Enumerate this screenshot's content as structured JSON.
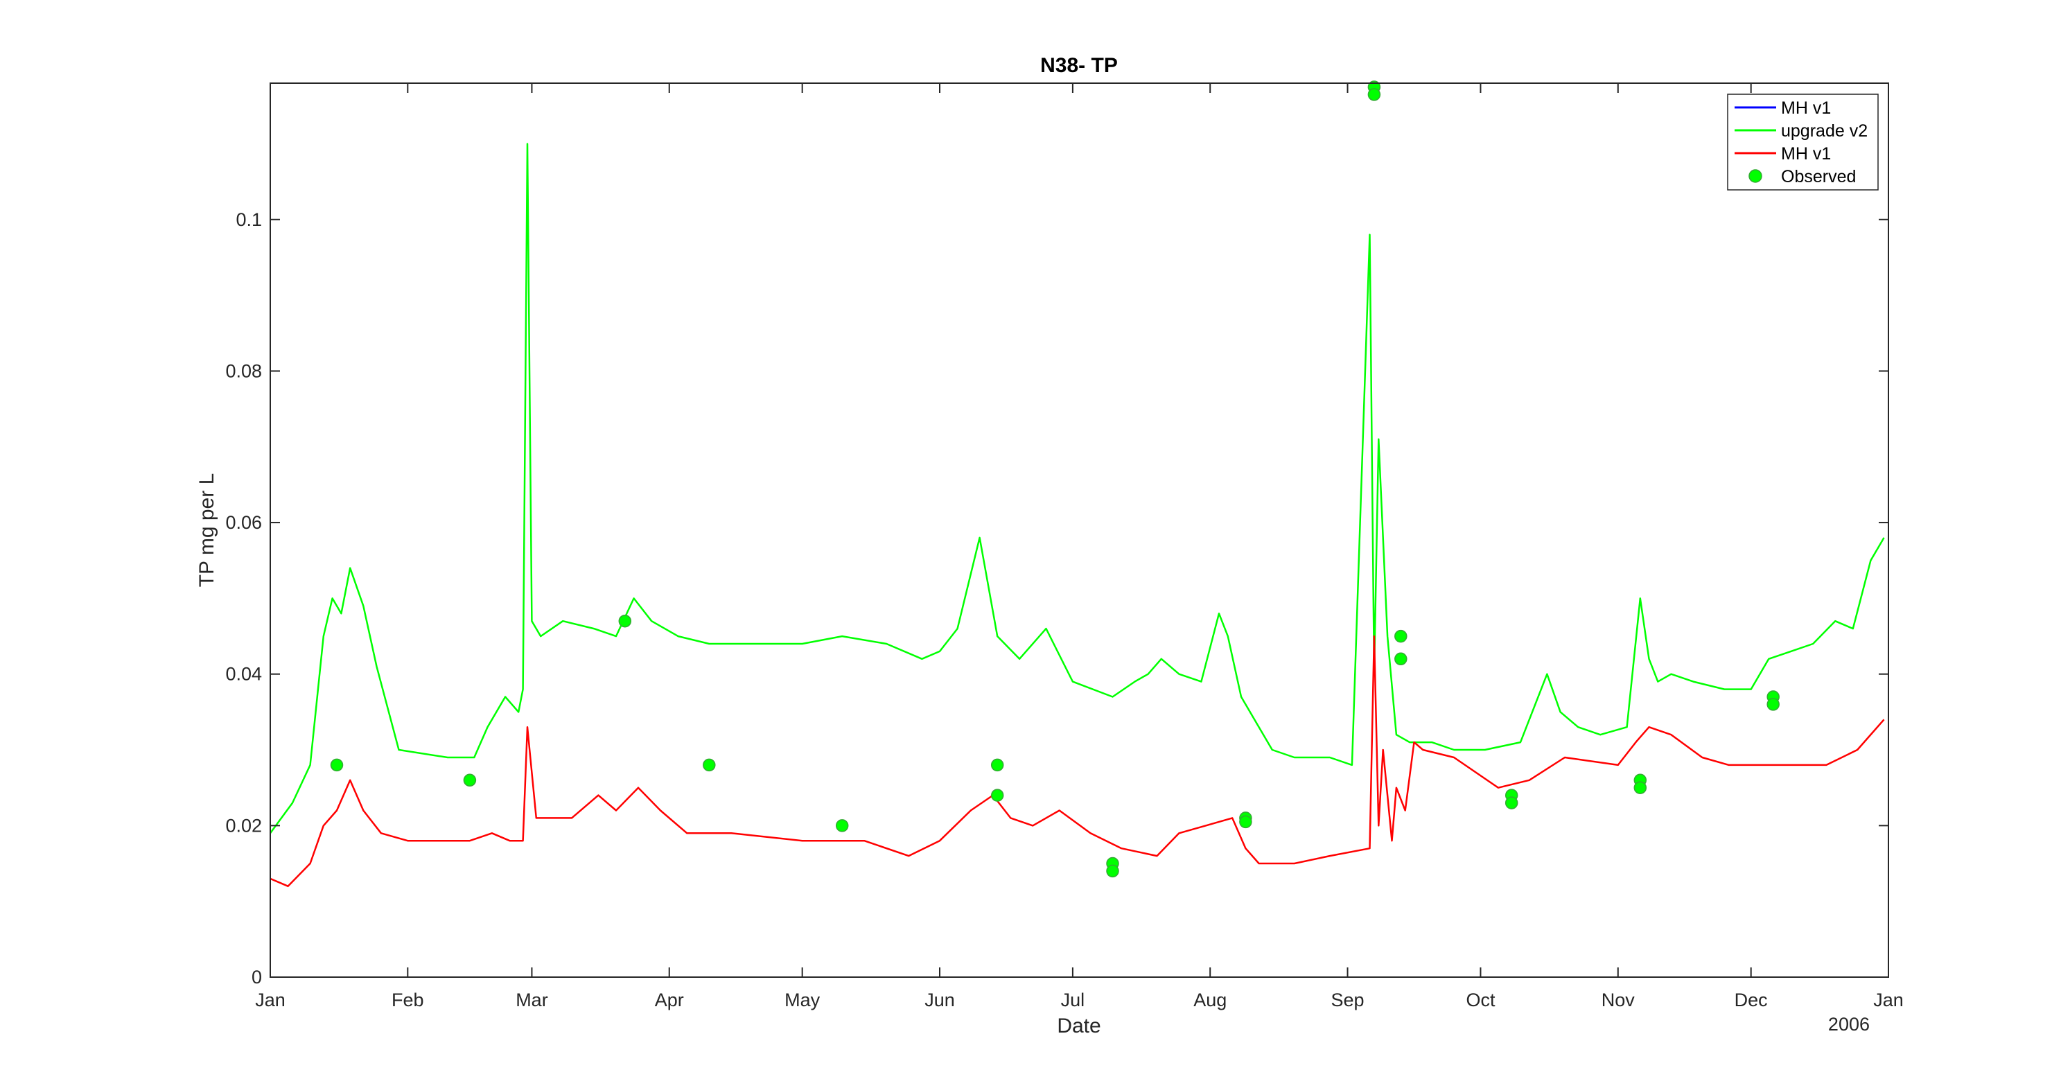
{
  "colors": {
    "series_mh_v1_blue": "#0000ff",
    "series_upgrade_v2": "#00ff00",
    "series_mh_v1_red": "#ff0000",
    "observed_fill": "#00ff00",
    "observed_edge": "#33aa33",
    "axis": "#262626"
  },
  "chart_data": {
    "type": "line",
    "title": "N38- TP",
    "xlabel": "Date",
    "ylabel": "TP mg per L",
    "year_label": "2006",
    "x_domain": [
      "2006-01-01",
      "2007-01-01"
    ],
    "ylim": [
      0,
      0.118
    ],
    "x_ticks": [
      {
        "date": "2006-01-01",
        "label": "Jan"
      },
      {
        "date": "2006-02-01",
        "label": "Feb"
      },
      {
        "date": "2006-03-01",
        "label": "Mar"
      },
      {
        "date": "2006-04-01",
        "label": "Apr"
      },
      {
        "date": "2006-05-01",
        "label": "May"
      },
      {
        "date": "2006-06-01",
        "label": "Jun"
      },
      {
        "date": "2006-07-01",
        "label": "Jul"
      },
      {
        "date": "2006-08-01",
        "label": "Aug"
      },
      {
        "date": "2006-09-01",
        "label": "Sep"
      },
      {
        "date": "2006-10-01",
        "label": "Oct"
      },
      {
        "date": "2006-11-01",
        "label": "Nov"
      },
      {
        "date": "2006-12-01",
        "label": "Dec"
      },
      {
        "date": "2007-01-01",
        "label": "Jan"
      }
    ],
    "y_ticks": [
      {
        "value": 0,
        "label": "0"
      },
      {
        "value": 0.02,
        "label": "0.02"
      },
      {
        "value": 0.04,
        "label": "0.04"
      },
      {
        "value": 0.06,
        "label": "0.06"
      },
      {
        "value": 0.08,
        "label": "0.08"
      },
      {
        "value": 0.1,
        "label": "0.1"
      }
    ],
    "grid": false,
    "legend_position": "top-right",
    "legend": [
      {
        "label": "MH v1",
        "kind": "line",
        "color": "#0000ff"
      },
      {
        "label": "upgrade v2",
        "kind": "line",
        "color": "#00ff00"
      },
      {
        "label": "MH v1",
        "kind": "line",
        "color": "#ff0000"
      },
      {
        "label": "Observed",
        "kind": "marker",
        "color": "#00ff00"
      }
    ],
    "series": [
      {
        "name": "upgrade v2",
        "color": "#00ff00",
        "x": [
          "2006-01-01",
          "2006-01-06",
          "2006-01-10",
          "2006-01-13",
          "2006-01-15",
          "2006-01-17",
          "2006-01-19",
          "2006-01-22",
          "2006-01-25",
          "2006-01-30",
          "2006-02-10",
          "2006-02-16",
          "2006-02-19",
          "2006-02-23",
          "2006-02-26",
          "2006-02-27",
          "2006-02-28",
          "2006-03-01",
          "2006-03-03",
          "2006-03-08",
          "2006-03-15",
          "2006-03-20",
          "2006-03-24",
          "2006-03-28",
          "2006-04-03",
          "2006-04-10",
          "2006-04-20",
          "2006-05-01",
          "2006-05-10",
          "2006-05-20",
          "2006-05-28",
          "2006-06-01",
          "2006-06-05",
          "2006-06-10",
          "2006-06-14",
          "2006-06-19",
          "2006-06-25",
          "2006-07-01",
          "2006-07-10",
          "2006-07-15",
          "2006-07-18",
          "2006-07-21",
          "2006-07-25",
          "2006-07-30",
          "2006-08-03",
          "2006-08-05",
          "2006-08-08",
          "2006-08-12",
          "2006-08-15",
          "2006-08-20",
          "2006-08-28",
          "2006-09-02",
          "2006-09-06",
          "2006-09-07",
          "2006-09-08",
          "2006-09-10",
          "2006-09-12",
          "2006-09-15",
          "2006-09-20",
          "2006-09-25",
          "2006-10-02",
          "2006-10-10",
          "2006-10-16",
          "2006-10-19",
          "2006-10-23",
          "2006-10-28",
          "2006-11-03",
          "2006-11-06",
          "2006-11-08",
          "2006-11-10",
          "2006-11-13",
          "2006-11-18",
          "2006-11-25",
          "2006-12-01",
          "2006-12-05",
          "2006-12-10",
          "2006-12-15",
          "2006-12-20",
          "2006-12-24",
          "2006-12-28",
          "2006-12-31"
        ],
        "y": [
          0.019,
          0.023,
          0.028,
          0.045,
          0.05,
          0.048,
          0.054,
          0.049,
          0.041,
          0.03,
          0.029,
          0.029,
          0.033,
          0.037,
          0.035,
          0.038,
          0.11,
          0.047,
          0.045,
          0.047,
          0.046,
          0.045,
          0.05,
          0.047,
          0.045,
          0.044,
          0.044,
          0.044,
          0.045,
          0.044,
          0.042,
          0.043,
          0.046,
          0.058,
          0.045,
          0.042,
          0.046,
          0.039,
          0.037,
          0.039,
          0.04,
          0.042,
          0.04,
          0.039,
          0.048,
          0.045,
          0.037,
          0.033,
          0.03,
          0.029,
          0.029,
          0.028,
          0.098,
          0.04,
          0.071,
          0.045,
          0.032,
          0.031,
          0.031,
          0.03,
          0.03,
          0.031,
          0.04,
          0.035,
          0.033,
          0.032,
          0.033,
          0.05,
          0.042,
          0.039,
          0.04,
          0.039,
          0.038,
          0.038,
          0.042,
          0.043,
          0.044,
          0.047,
          0.046,
          0.055,
          0.058
        ]
      },
      {
        "name": "MH v1",
        "color": "#ff0000",
        "x": [
          "2006-01-01",
          "2006-01-05",
          "2006-01-10",
          "2006-01-13",
          "2006-01-16",
          "2006-01-19",
          "2006-01-22",
          "2006-01-26",
          "2006-02-01",
          "2006-02-15",
          "2006-02-20",
          "2006-02-24",
          "2006-02-27",
          "2006-02-28",
          "2006-03-02",
          "2006-03-10",
          "2006-03-16",
          "2006-03-20",
          "2006-03-25",
          "2006-03-30",
          "2006-04-05",
          "2006-04-15",
          "2006-05-01",
          "2006-05-15",
          "2006-05-25",
          "2006-06-01",
          "2006-06-08",
          "2006-06-13",
          "2006-06-17",
          "2006-06-22",
          "2006-06-28",
          "2006-07-05",
          "2006-07-12",
          "2006-07-20",
          "2006-07-25",
          "2006-07-31",
          "2006-08-06",
          "2006-08-09",
          "2006-08-12",
          "2006-08-20",
          "2006-08-28",
          "2006-09-06",
          "2006-09-07",
          "2006-09-08",
          "2006-09-09",
          "2006-09-11",
          "2006-09-12",
          "2006-09-14",
          "2006-09-16",
          "2006-09-18",
          "2006-09-25",
          "2006-10-05",
          "2006-10-12",
          "2006-10-20",
          "2006-11-01",
          "2006-11-05",
          "2006-11-08",
          "2006-11-13",
          "2006-11-20",
          "2006-11-26",
          "2006-12-01",
          "2006-12-10",
          "2006-12-18",
          "2006-12-25",
          "2006-12-31"
        ],
        "y": [
          0.013,
          0.012,
          0.015,
          0.02,
          0.022,
          0.026,
          0.022,
          0.019,
          0.018,
          0.018,
          0.019,
          0.018,
          0.018,
          0.033,
          0.021,
          0.021,
          0.024,
          0.022,
          0.025,
          0.022,
          0.019,
          0.019,
          0.018,
          0.018,
          0.016,
          0.018,
          0.022,
          0.024,
          0.021,
          0.02,
          0.022,
          0.019,
          0.017,
          0.016,
          0.019,
          0.02,
          0.021,
          0.017,
          0.015,
          0.015,
          0.016,
          0.017,
          0.045,
          0.02,
          0.03,
          0.018,
          0.025,
          0.022,
          0.031,
          0.03,
          0.029,
          0.025,
          0.026,
          0.029,
          0.028,
          0.031,
          0.033,
          0.032,
          0.029,
          0.028,
          0.028,
          0.028,
          0.028,
          0.03,
          0.034
        ]
      }
    ],
    "observed": {
      "name": "Observed",
      "x": [
        "2006-01-16",
        "2006-02-15",
        "2006-03-22",
        "2006-04-10",
        "2006-05-10",
        "2006-06-14",
        "2006-06-14",
        "2006-07-10",
        "2006-07-10",
        "2006-08-09",
        "2006-08-09",
        "2006-09-07",
        "2006-09-07",
        "2006-09-13",
        "2006-09-13",
        "2006-10-08",
        "2006-10-08",
        "2006-11-06",
        "2006-11-06",
        "2006-12-06",
        "2006-12-06"
      ],
      "y": [
        0.028,
        0.026,
        0.047,
        0.028,
        0.02,
        0.028,
        0.024,
        0.015,
        0.014,
        0.021,
        0.0205,
        0.1175,
        0.1165,
        0.045,
        0.042,
        0.024,
        0.023,
        0.026,
        0.025,
        0.037,
        0.036
      ]
    }
  }
}
